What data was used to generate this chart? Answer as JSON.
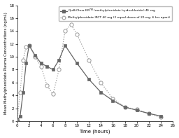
{
  "quillichew_x": [
    0,
    0.5,
    1,
    1.5,
    2,
    3,
    4,
    5,
    6,
    7,
    8,
    10,
    12,
    14,
    16,
    18,
    20,
    22,
    24
  ],
  "quillichew_y": [
    0,
    0.8,
    4.5,
    9.0,
    11.8,
    10.2,
    9.0,
    8.5,
    8.0,
    9.5,
    11.8,
    9.0,
    6.5,
    4.5,
    3.2,
    2.2,
    1.7,
    1.2,
    0.8
  ],
  "irct_x": [
    0,
    0.5,
    1,
    1.5,
    2,
    3,
    4,
    5,
    6,
    7,
    8,
    9,
    10,
    12,
    14,
    16,
    18,
    20,
    22,
    24
  ],
  "irct_y": [
    0.1,
    4.5,
    9.5,
    11.5,
    11.8,
    10.0,
    8.5,
    5.5,
    4.2,
    8.0,
    14.0,
    15.0,
    13.5,
    9.5,
    6.0,
    3.5,
    2.2,
    1.8,
    1.2,
    0.6
  ],
  "quillichew_color": "#666666",
  "irct_color": "#999999",
  "xlabel": "Time (hours)",
  "ylabel": "Mean Methylphenidate Plasma Concentrations (ng/mL)",
  "legend1": "QuilliChew ER$^{TM}$ (methylphenidate hydrochloride) 40 mg",
  "legend2": "Methylphenidate IRCT 40 mg (2 equal doses of 20 mg, 6 hrs apart)",
  "xlim": [
    0,
    26
  ],
  "ylim": [
    0,
    18
  ],
  "xticks": [
    0,
    2,
    4,
    6,
    8,
    10,
    12,
    14,
    16,
    18,
    20,
    22,
    24,
    26
  ],
  "yticks": [
    0,
    2,
    4,
    6,
    8,
    10,
    12,
    14,
    16,
    18
  ]
}
